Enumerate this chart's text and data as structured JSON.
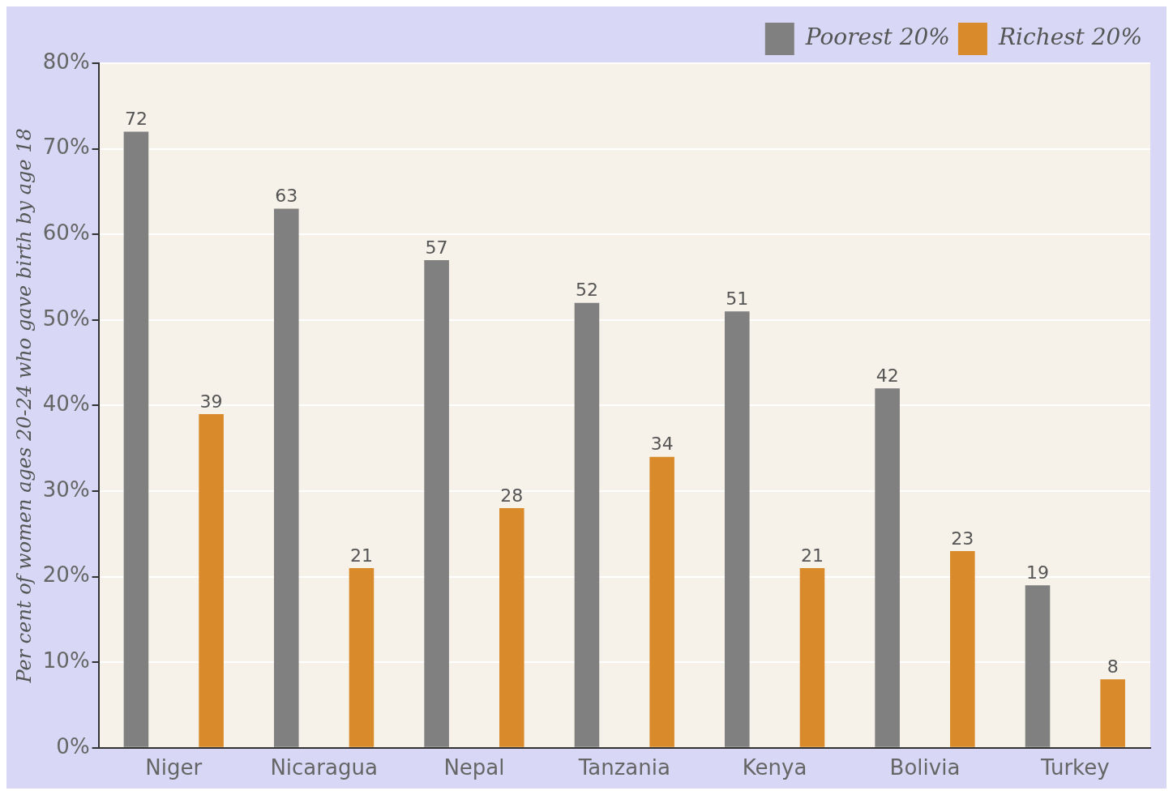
{
  "chart_data": {
    "type": "bar",
    "ylabel": "Per cent of women ages 20-24 who gave birth by age 18",
    "categories": [
      "Niger",
      "Nicaragua",
      "Nepal",
      "Tanzania",
      "Kenya",
      "Bolivia",
      "Turkey"
    ],
    "series": [
      {
        "name": "Poorest 20%",
        "color": "#808080",
        "values": [
          72,
          63,
          57,
          52,
          51,
          42,
          19
        ]
      },
      {
        "name": "Richest 20%",
        "color": "#d98b2b",
        "values": [
          39,
          21,
          28,
          34,
          21,
          23,
          8
        ]
      }
    ],
    "ylim": [
      0,
      80
    ],
    "yticks": [
      {
        "value": 0,
        "label": "0%"
      },
      {
        "value": 10,
        "label": "10%"
      },
      {
        "value": 20,
        "label": "20%"
      },
      {
        "value": 30,
        "label": "30%"
      },
      {
        "value": 40,
        "label": "40%"
      },
      {
        "value": 50,
        "label": "50%"
      },
      {
        "value": 60,
        "label": "60%"
      },
      {
        "value": 70,
        "label": "70%"
      },
      {
        "value": 80,
        "label": "80%"
      }
    ],
    "grid": "y",
    "legend": "top right",
    "data_labels": true
  }
}
